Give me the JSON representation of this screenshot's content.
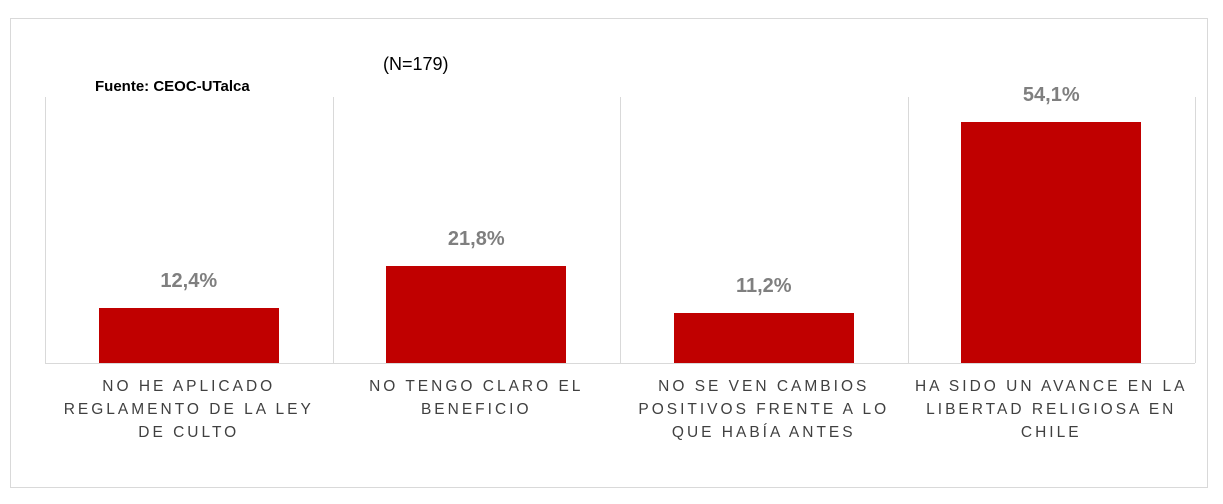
{
  "chart_data": {
    "type": "bar",
    "annotations": [
      "(N=179)",
      "Fuente: CEOC-UTalca"
    ],
    "categories": [
      "NO HE APLICADO REGLAMENTO DE LA LEY DE CULTO",
      "NO TENGO CLARO EL BENEFICIO",
      "NO SE VEN CAMBIOS POSITIVOS FRENTE A LO QUE HABÍA ANTES",
      "HA SIDO UN AVANCE EN LA LIBERTAD RELIGIOSA EN CHILE"
    ],
    "values": [
      12.4,
      21.8,
      11.2,
      54.1
    ],
    "value_labels": [
      "12,4%",
      "21,8%",
      "11,2%",
      "54,1%"
    ],
    "color": "#c00000"
  }
}
